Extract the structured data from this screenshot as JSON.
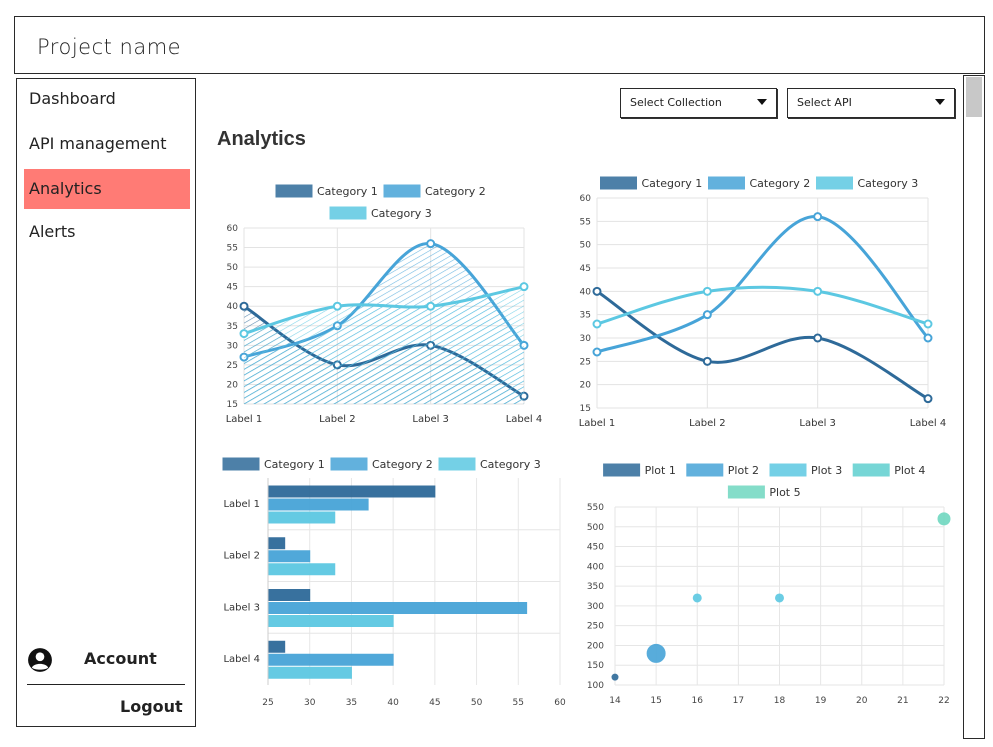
{
  "app": {
    "project_name": "Project name"
  },
  "sidebar": {
    "items": [
      {
        "label": "Dashboard",
        "active": false
      },
      {
        "label": "API management",
        "active": false
      },
      {
        "label": "Analytics",
        "active": true
      },
      {
        "label": "Alerts",
        "active": false
      }
    ],
    "account_label": "Account",
    "logout_label": "Logout",
    "active_color": "#ff7b75"
  },
  "main": {
    "title": "Analytics",
    "select_collection": {
      "label": "Select Collection",
      "icon": "chevron-down-icon"
    },
    "select_api": {
      "label": "Select API",
      "icon": "chevron-down-icon"
    }
  },
  "colors": {
    "series": [
      "#2e6a99",
      "#47a4d8",
      "#5cc8e2",
      "#5fcfd0",
      "#6fd8c0"
    ]
  },
  "chart_data": [
    {
      "id": "area",
      "type": "area",
      "categories": [
        "Label 1",
        "Label 2",
        "Label 3",
        "Label 4"
      ],
      "series": [
        {
          "name": "Category 1",
          "values": [
            40,
            25,
            30,
            17
          ]
        },
        {
          "name": "Category 2",
          "values": [
            27,
            35,
            56,
            30
          ]
        },
        {
          "name": "Category 3",
          "values": [
            33,
            40,
            40,
            45
          ]
        }
      ],
      "ylim": [
        15,
        60
      ],
      "yticks": [
        "15",
        "20",
        "25",
        "30",
        "35",
        "40",
        "45",
        "50",
        "55",
        "60"
      ],
      "grid": true,
      "legend": "top"
    },
    {
      "id": "line",
      "type": "line",
      "categories": [
        "Label 1",
        "Label 2",
        "Label 3",
        "Label 4"
      ],
      "series": [
        {
          "name": "Category 1",
          "values": [
            40,
            25,
            30,
            17
          ]
        },
        {
          "name": "Category 2",
          "values": [
            27,
            35,
            56,
            30
          ]
        },
        {
          "name": "Category 3",
          "values": [
            33,
            40,
            40,
            33
          ]
        }
      ],
      "ylim": [
        15,
        60
      ],
      "yticks": [
        "15",
        "20",
        "25",
        "30",
        "35",
        "40",
        "45",
        "50",
        "55",
        "60"
      ],
      "grid": true,
      "legend": "top"
    },
    {
      "id": "bar",
      "type": "bar",
      "orientation": "horizontal",
      "categories": [
        "Label 1",
        "Label 2",
        "Label 3",
        "Label 4"
      ],
      "series": [
        {
          "name": "Category 1",
          "values": [
            45,
            27,
            30,
            27
          ]
        },
        {
          "name": "Category 2",
          "values": [
            37,
            30,
            56,
            40
          ]
        },
        {
          "name": "Category 3",
          "values": [
            33,
            33,
            40,
            35
          ]
        }
      ],
      "xlim": [
        25,
        60
      ],
      "xticks": [
        "25",
        "30",
        "35",
        "40",
        "45",
        "50",
        "55",
        "60"
      ],
      "grid": true,
      "legend": "top"
    },
    {
      "id": "scatter",
      "type": "scatter",
      "series": [
        {
          "name": "Plot 1",
          "points": [
            {
              "x": 14,
              "y": 120
            }
          ]
        },
        {
          "name": "Plot 2",
          "points": [
            {
              "x": 15,
              "y": 180
            }
          ]
        },
        {
          "name": "Plot 3",
          "points": [
            {
              "x": 16,
              "y": 320
            },
            {
              "x": 18,
              "y": 320
            }
          ]
        },
        {
          "name": "Plot 4",
          "points": []
        },
        {
          "name": "Plot 5",
          "points": [
            {
              "x": 22,
              "y": 520
            }
          ]
        }
      ],
      "xlim": [
        14,
        22
      ],
      "ylim": [
        100,
        550
      ],
      "xticks": [
        "14",
        "15",
        "16",
        "17",
        "18",
        "19",
        "20",
        "21",
        "22"
      ],
      "yticks": [
        "100",
        "150",
        "200",
        "250",
        "300",
        "350",
        "400",
        "450",
        "500",
        "550"
      ],
      "grid": true,
      "legend": "top"
    }
  ]
}
